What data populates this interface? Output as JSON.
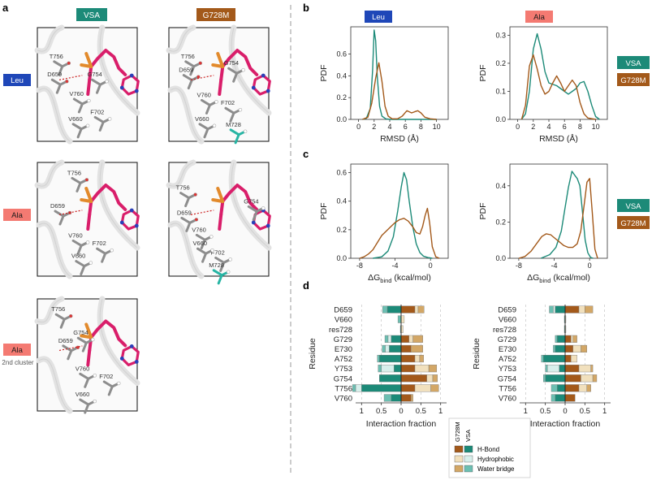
{
  "figure": {
    "panel_labels": [
      "a",
      "b",
      "c",
      "d"
    ],
    "colors": {
      "vsa": "#1c8a78",
      "vsa_light": "#d7efeb",
      "vsa_mid": "#6cbfb2",
      "g728m": "#a3591a",
      "g728m_light": "#f1e0bd",
      "g728m_mid": "#d3a766",
      "leu_box": "#1f47b8",
      "ala_box": "#f47a72",
      "ligand": "#d91e6a",
      "phosphate": "#e28a2c",
      "nitrogen": "#2b3fb8",
      "cys": "#27b5a4"
    }
  },
  "panel_a": {
    "col_headers": [
      {
        "text": "VSA",
        "color": "#1c8a78"
      },
      {
        "text": "G728M",
        "color": "#a3591a"
      }
    ],
    "row_headers": [
      {
        "text": "Leu",
        "sub": "",
        "color": "#1f47b8",
        "text_color": "#ffffff"
      },
      {
        "text": "Ala",
        "sub": "",
        "color": "#f47a72",
        "text_color": "#1a1a1a"
      },
      {
        "text": "Ala",
        "sub": "2nd cluster",
        "color": "#f47a72",
        "text_color": "#1a1a1a"
      }
    ],
    "structures": [
      {
        "labels": [
          "T756",
          "G754",
          "D659",
          "V760",
          "V660",
          "F702"
        ]
      },
      {
        "labels": [
          "T756",
          "G754",
          "D659",
          "V760",
          "F702",
          "V660",
          "M728"
        ]
      },
      {
        "labels": [
          "T756",
          "D659",
          "V760",
          "F702",
          "V660"
        ]
      },
      {
        "labels": [
          "T756",
          "G754",
          "D659",
          "V760",
          "F702",
          "V660",
          "M728"
        ]
      },
      {
        "labels": [
          "T756",
          "G754",
          "D659",
          "V760",
          "F702",
          "V660"
        ]
      }
    ]
  },
  "chart_data": [
    {
      "id": "b-leu",
      "type": "line",
      "title": "Leu",
      "xlabel": "RMSD (Å)",
      "ylabel": "PDF",
      "xlim": [
        -1,
        11.5
      ],
      "ylim": [
        0,
        0.85
      ],
      "xticks": [
        0,
        2,
        4,
        6,
        8,
        10
      ],
      "yticks": [
        0.0,
        0.2,
        0.4,
        0.6
      ],
      "series": [
        {
          "name": "VSA",
          "x": [
            0.5,
            1,
            1.5,
            1.8,
            2.0,
            2.2,
            2.4,
            2.7,
            3.0,
            3.5,
            4,
            5,
            7,
            10
          ],
          "y": [
            0,
            0.01,
            0.1,
            0.45,
            0.82,
            0.72,
            0.4,
            0.12,
            0.03,
            0.005,
            0,
            0,
            0,
            0
          ]
        },
        {
          "name": "G728M",
          "x": [
            0.5,
            1.2,
            1.7,
            2.2,
            2.6,
            3.0,
            3.4,
            3.8,
            4.3,
            5,
            5.6,
            6.2,
            6.8,
            7.2,
            7.6,
            8.0,
            8.5,
            9.2,
            10
          ],
          "y": [
            0,
            0.02,
            0.15,
            0.38,
            0.52,
            0.35,
            0.12,
            0.03,
            0.005,
            0.005,
            0.03,
            0.08,
            0.06,
            0.07,
            0.08,
            0.06,
            0.02,
            0.005,
            0
          ]
        }
      ]
    },
    {
      "id": "b-ala",
      "type": "line",
      "title": "Ala",
      "xlabel": "RMSD (Å)",
      "ylabel": "PDF",
      "xlim": [
        -1,
        11.5
      ],
      "ylim": [
        0,
        0.33
      ],
      "xticks": [
        0,
        2,
        4,
        6,
        8,
        10
      ],
      "yticks": [
        0.0,
        0.1,
        0.2,
        0.3
      ],
      "series": [
        {
          "name": "VSA",
          "x": [
            0.5,
            1.0,
            1.5,
            2.0,
            2.5,
            3.0,
            3.5,
            4.0,
            5.0,
            6.0,
            6.5,
            7.0,
            7.5,
            8.0,
            8.5,
            9.0,
            9.5,
            10,
            10.5
          ],
          "y": [
            0,
            0.02,
            0.1,
            0.25,
            0.305,
            0.25,
            0.17,
            0.13,
            0.12,
            0.1,
            0.09,
            0.1,
            0.11,
            0.13,
            0.135,
            0.1,
            0.05,
            0.01,
            0
          ]
        },
        {
          "name": "G728M",
          "x": [
            0.5,
            1.0,
            1.5,
            2.0,
            2.5,
            3.0,
            3.5,
            4.0,
            4.5,
            5.0,
            5.5,
            6.0,
            6.5,
            7.0,
            7.5,
            8.0,
            8.5,
            9.0,
            10
          ],
          "y": [
            0,
            0.05,
            0.19,
            0.23,
            0.18,
            0.12,
            0.09,
            0.1,
            0.13,
            0.155,
            0.13,
            0.1,
            0.12,
            0.14,
            0.12,
            0.06,
            0.02,
            0.005,
            0
          ]
        }
      ]
    },
    {
      "id": "c-leu",
      "type": "line",
      "title": "",
      "xlabel": "ΔG",
      "xlabel_sub": "bind",
      "xlabel_unit": " (kcal/mol)",
      "ylabel": "PDF",
      "xlim": [
        -9,
        2
      ],
      "ylim": [
        0,
        0.66
      ],
      "xticks": [
        -8,
        -4,
        0
      ],
      "yticks": [
        0.0,
        0.2,
        0.4,
        0.6
      ],
      "series": [
        {
          "name": "VSA",
          "x": [
            -6.5,
            -5.5,
            -4.8,
            -4.2,
            -3.7,
            -3.3,
            -3.0,
            -2.7,
            -2.4,
            -2.0,
            -1.6,
            -1.2,
            -0.8,
            -0.3,
            0.2
          ],
          "y": [
            0,
            0.01,
            0.05,
            0.15,
            0.33,
            0.5,
            0.6,
            0.55,
            0.4,
            0.22,
            0.1,
            0.04,
            0.015,
            0.005,
            0
          ]
        },
        {
          "name": "G728M",
          "x": [
            -8,
            -7.5,
            -7,
            -6.5,
            -6,
            -5.5,
            -5,
            -4.5,
            -4,
            -3.5,
            -3.0,
            -2.5,
            -2.0,
            -1.6,
            -1.2,
            -0.9,
            -0.6,
            -0.35,
            -0.1,
            0.2,
            0.6,
            1.0
          ],
          "y": [
            0,
            0.01,
            0.03,
            0.06,
            0.11,
            0.16,
            0.19,
            0.22,
            0.25,
            0.27,
            0.28,
            0.26,
            0.22,
            0.18,
            0.17,
            0.22,
            0.3,
            0.35,
            0.25,
            0.08,
            0.01,
            0
          ]
        }
      ]
    },
    {
      "id": "c-ala",
      "type": "line",
      "title": "",
      "xlabel": "ΔG",
      "xlabel_sub": "bind",
      "xlabel_unit": " (kcal/mol)",
      "ylabel": "PDF",
      "xlim": [
        -9,
        2
      ],
      "ylim": [
        0,
        0.52
      ],
      "xticks": [
        -8,
        -4,
        0
      ],
      "yticks": [
        0.0,
        0.2,
        0.4
      ],
      "series": [
        {
          "name": "VSA",
          "x": [
            -5.5,
            -4.5,
            -3.8,
            -3.2,
            -2.8,
            -2.4,
            -2.0,
            -1.7,
            -1.4,
            -1.1,
            -0.8,
            -0.5,
            -0.2,
            0.1,
            0.4
          ],
          "y": [
            0,
            0.02,
            0.06,
            0.15,
            0.27,
            0.39,
            0.48,
            0.46,
            0.44,
            0.4,
            0.25,
            0.1,
            0.03,
            0.005,
            0
          ]
        },
        {
          "name": "G728M",
          "x": [
            -8,
            -7.3,
            -6.6,
            -6,
            -5.4,
            -4.9,
            -4.4,
            -3.9,
            -3.4,
            -2.9,
            -2.4,
            -1.9,
            -1.4,
            -1.0,
            -0.6,
            -0.3,
            0,
            0.3,
            0.6,
            0.9
          ],
          "y": [
            0,
            0.01,
            0.04,
            0.08,
            0.12,
            0.135,
            0.13,
            0.11,
            0.09,
            0.07,
            0.06,
            0.06,
            0.08,
            0.15,
            0.3,
            0.42,
            0.44,
            0.25,
            0.05,
            0
          ]
        }
      ]
    },
    {
      "id": "d-leu",
      "type": "bar",
      "ylabel": "Residue",
      "xlabel": "Interaction fraction",
      "xticks_left": [
        "1",
        "0.5",
        "0"
      ],
      "xticks_right": [
        "0.5",
        "1"
      ],
      "categories": [
        "D659",
        "V660",
        "res728",
        "G729",
        "E730",
        "A752",
        "Y753",
        "G754",
        "T756",
        "V760"
      ],
      "vsa": [
        [
          0.35,
          0,
          0.12
        ],
        [
          0,
          0,
          0.08
        ],
        [
          0,
          0,
          0.02
        ],
        [
          0.25,
          0.08,
          0.08
        ],
        [
          0.3,
          0.1,
          0.08
        ],
        [
          0.55,
          0,
          0.05
        ],
        [
          0.18,
          0.32,
          0.08
        ],
        [
          0.55,
          0,
          0
        ],
        [
          1.0,
          0.15,
          0.08
        ],
        [
          0.25,
          0,
          0.18
        ]
      ],
      "g728m": [
        [
          0.35,
          0.08,
          0.15
        ],
        [
          0,
          0.08,
          0
        ],
        [
          0,
          0.05,
          0
        ],
        [
          0.2,
          0.1,
          0.25
        ],
        [
          0.25,
          0,
          0.3
        ],
        [
          0.35,
          0.12,
          0.1
        ],
        [
          0.35,
          0.35,
          0.2
        ],
        [
          0.65,
          0.15,
          0.12
        ],
        [
          0.35,
          0.4,
          0.2
        ],
        [
          0.25,
          0,
          0.05
        ]
      ]
    },
    {
      "id": "d-ala",
      "type": "bar",
      "ylabel": "Residue",
      "xlabel": "Interaction fraction",
      "xticks_left": [
        "1",
        "0.5",
        "0"
      ],
      "xticks_right": [
        "0.5",
        "1"
      ],
      "categories": [
        "D659",
        "V660",
        "res728",
        "G729",
        "E730",
        "A752",
        "Y753",
        "G754",
        "T756",
        "V760"
      ],
      "vsa": [
        [
          0.25,
          0.05,
          0.1
        ],
        [
          0,
          0,
          0.02
        ],
        [
          0,
          0,
          0.02
        ],
        [
          0.2,
          0,
          0.05
        ],
        [
          0.25,
          0,
          0.05
        ],
        [
          0.55,
          0,
          0.05
        ],
        [
          0.15,
          0.3,
          0.05
        ],
        [
          0.5,
          0,
          0.05
        ],
        [
          0.2,
          0,
          0.15
        ],
        [
          0.25,
          0,
          0.1
        ]
      ],
      "g728m": [
        [
          0.35,
          0.15,
          0.2
        ],
        [
          0,
          0.02,
          0
        ],
        [
          0,
          0.02,
          0
        ],
        [
          0.15,
          0.05,
          0.1
        ],
        [
          0.2,
          0.2,
          0.15
        ],
        [
          0.15,
          0.15,
          0
        ],
        [
          0.35,
          0.3,
          0.05
        ],
        [
          0.4,
          0.3,
          0.1
        ],
        [
          0.35,
          0.2,
          0.1
        ],
        [
          0.25,
          0,
          0
        ]
      ]
    }
  ],
  "legend_b": [
    {
      "text": "VSA",
      "color": "#1c8a78"
    },
    {
      "text": "G728M",
      "color": "#a3591a"
    }
  ],
  "legend_d": {
    "col_labels": [
      "G728M",
      "VSA"
    ],
    "items": [
      "H-Bond",
      "Hydrophobic",
      "Water bridge"
    ]
  }
}
